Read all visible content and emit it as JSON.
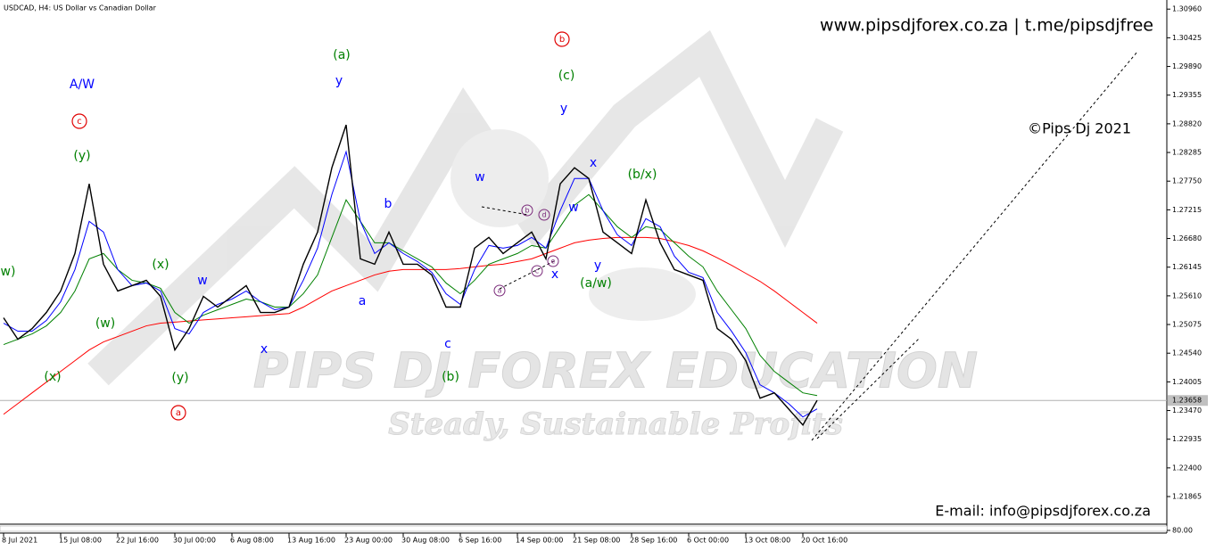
{
  "header": {
    "symbol_title": "USDCAD, H4:  US Dollar vs Canadian Dollar",
    "website": "www.pipsdjforex.co.za  |  t.me/pipsdjfree",
    "copyright": "©Pips Dj 2021",
    "email": "E-mail: info@pipsdjforex.co.za",
    "watermark_title": "PIPS DJ FOREX EDUCATION",
    "watermark_slogan": "Steady, Sustainable Profits"
  },
  "chart_data": {
    "type": "line",
    "categories": [
      "8 Jul 2021",
      null,
      null,
      null,
      "15 Jul 08:00",
      null,
      null,
      null,
      "22 Jul 16:00",
      null,
      null,
      null,
      "30 Jul 00:00",
      null,
      null,
      null,
      "6 Aug 08:00",
      null,
      null,
      null,
      "13 Aug 16:00",
      null,
      null,
      null,
      "23 Aug 00:00",
      null,
      null,
      null,
      "30 Aug 08:00",
      null,
      null,
      null,
      "6 Sep 16:00",
      null,
      null,
      null,
      "14 Sep 00:00",
      null,
      null,
      null,
      "21 Sep 08:00",
      null,
      null,
      null,
      "28 Sep 16:00",
      null,
      null,
      null,
      "6 Oct 00:00",
      null,
      null,
      null,
      "13 Oct 08:00",
      null,
      null,
      null,
      "20 Oct 16:00",
      null
    ],
    "series": [
      {
        "color": "#000000",
        "values": [
          1.252,
          1.248,
          1.25,
          1.253,
          1.257,
          1.264,
          1.277,
          1.262,
          1.257,
          1.258,
          1.259,
          1.256,
          1.246,
          1.25,
          1.256,
          1.254,
          1.256,
          1.258,
          1.253,
          1.253,
          1.254,
          1.262,
          1.268,
          1.28,
          1.288,
          1.263,
          1.262,
          1.268,
          1.262,
          1.262,
          1.26,
          1.254,
          1.254,
          1.265,
          1.267,
          1.264,
          1.266,
          1.268,
          1.263,
          1.277,
          1.28,
          1.278,
          1.268,
          1.266,
          1.264,
          1.274,
          1.266,
          1.261,
          1.26,
          1.259,
          1.25,
          1.248,
          1.244,
          1.237,
          1.238,
          1.235,
          1.232,
          1.2366
        ]
      },
      {
        "color": "#0000ff",
        "values": [
          1.251,
          1.2495,
          1.2495,
          1.2515,
          1.255,
          1.261,
          1.27,
          1.268,
          1.261,
          1.258,
          1.2585,
          1.257,
          1.25,
          1.249,
          1.253,
          1.2545,
          1.2555,
          1.257,
          1.255,
          1.2535,
          1.254,
          1.259,
          1.265,
          1.275,
          1.283,
          1.27,
          1.264,
          1.266,
          1.264,
          1.2625,
          1.2605,
          1.2565,
          1.2545,
          1.261,
          1.2655,
          1.265,
          1.2655,
          1.267,
          1.265,
          1.272,
          1.278,
          1.278,
          1.272,
          1.2675,
          1.2655,
          1.2705,
          1.269,
          1.2635,
          1.2605,
          1.2595,
          1.253,
          1.2495,
          1.2455,
          1.2395,
          1.238,
          1.236,
          1.2335,
          1.235
        ]
      },
      {
        "color": "#008000",
        "values": [
          1.247,
          1.248,
          1.249,
          1.2505,
          1.253,
          1.257,
          1.263,
          1.264,
          1.261,
          1.259,
          1.2585,
          1.2575,
          1.253,
          1.251,
          1.2525,
          1.2535,
          1.2545,
          1.2555,
          1.255,
          1.254,
          1.254,
          1.2565,
          1.26,
          1.267,
          1.274,
          1.27,
          1.266,
          1.266,
          1.2645,
          1.263,
          1.2615,
          1.2585,
          1.2565,
          1.259,
          1.262,
          1.263,
          1.264,
          1.2655,
          1.265,
          1.269,
          1.273,
          1.275,
          1.272,
          1.269,
          1.267,
          1.269,
          1.2685,
          1.266,
          1.2635,
          1.2615,
          1.257,
          1.2535,
          1.25,
          1.245,
          1.242,
          1.24,
          1.238,
          1.2375
        ]
      },
      {
        "color": "#ff0000",
        "values": [
          1.234,
          1.236,
          1.238,
          1.24,
          1.242,
          1.244,
          1.246,
          1.2475,
          1.2485,
          1.2495,
          1.2505,
          1.251,
          1.2512,
          1.2514,
          1.2516,
          1.2518,
          1.252,
          1.2522,
          1.2524,
          1.2526,
          1.2528,
          1.254,
          1.2555,
          1.257,
          1.258,
          1.259,
          1.26,
          1.2607,
          1.261,
          1.261,
          1.261,
          1.261,
          1.2612,
          1.2615,
          1.2618,
          1.262,
          1.2625,
          1.263,
          1.264,
          1.265,
          1.266,
          1.2665,
          1.2668,
          1.267,
          1.267,
          1.267,
          1.2668,
          1.2662,
          1.2655,
          1.2645,
          1.2632,
          1.2618,
          1.2603,
          1.2588,
          1.257,
          1.255,
          1.253,
          1.251
        ]
      }
    ],
    "ylim": [
      1.2135,
      1.3113
    ],
    "yticks": [
      {
        "value": 1.3096,
        "label": "1.30960"
      },
      1.30425,
      {
        "value": 1.2989,
        "label": "1.29890"
      },
      1.29355,
      {
        "value": 1.2882,
        "label": "1.28820"
      },
      1.28285,
      {
        "value": 1.2775,
        "label": "1.27750"
      },
      1.27215,
      {
        "value": 1.2668,
        "label": "1.26680"
      },
      1.26145,
      {
        "value": 1.2561,
        "label": "1.25610"
      },
      1.25075,
      {
        "value": 1.2454,
        "label": "1.24540"
      },
      1.24005,
      {
        "value": 1.2347,
        "label": "1.23470"
      },
      1.22935,
      {
        "value": 1.224,
        "label": "1.22400"
      },
      1.21865
    ],
    "current_price": 1.23658,
    "indicator_yticks": [
      {
        "value": 80,
        "label": "80.00"
      }
    ],
    "annotations": [
      "A/W",
      "c",
      "(y)",
      "w)",
      "(w)",
      "(x)",
      "(x)",
      "w",
      "(y)",
      "a",
      "x",
      "(a)",
      "y",
      "b",
      "a",
      "c",
      "(b)",
      "w",
      "b",
      "d",
      "a",
      "c",
      "e",
      "x",
      "b",
      "(c)",
      "y",
      "x",
      "w",
      "y",
      "(a/w)",
      "(b/x)"
    ]
  }
}
